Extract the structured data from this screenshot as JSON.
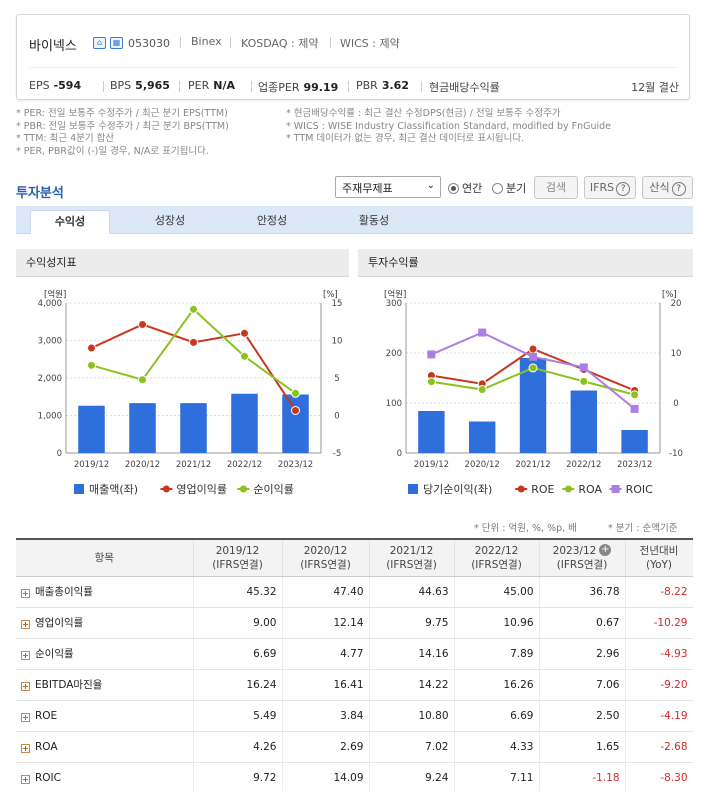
{
  "header": {
    "name": "바이넥스",
    "code": "053030",
    "english_name": "Binex",
    "market": "KOSDAQ : 제약",
    "wics": "WICS : 제약",
    "stats": [
      {
        "label": "EPS",
        "value": "-594"
      },
      {
        "label": "BPS",
        "value": "5,965"
      },
      {
        "label": "PER",
        "value": "N/A"
      },
      {
        "label": "업종PER",
        "value": "99.19"
      },
      {
        "label": "PBR",
        "value": "3.62"
      },
      {
        "label": "현금배당수익률",
        "value": ""
      }
    ],
    "settlement": "12월 결산"
  },
  "notes": {
    "left": [
      "* PER: 전일 보통주 수정주가 / 최근 분기 EPS(TTM)",
      "* PBR: 전일 보통주 수정주가 / 최근 분기 BPS(TTM)",
      "* TTM: 최근 4분기 합산",
      "* PER, PBR값이 (-)일 경우, N/A로 표기됩니다."
    ],
    "right": [
      "* 현금배당수익률 : 최근 결산 수정DPS(현금) / 전일 보통주 수정주가",
      "* WICS : WISE Industry Classification Standard, modified by FnGuide",
      "* TTM 데이터가 없는 경우, 최근 결산 데이터로 표시됩니다."
    ]
  },
  "analysis": {
    "title": "투자분석",
    "select_value": "주재무제표",
    "radio_annual": "연간",
    "radio_quarter": "분기",
    "search_button": "검색",
    "ifrs_button": "IFRS",
    "calc_button": "산식",
    "help_glyph": "?",
    "tabs": [
      "수익성",
      "성장성",
      "안정성",
      "활동성"
    ]
  },
  "panels": {
    "left_title": "수익성지표",
    "right_title": "투자수익률"
  },
  "colors": {
    "bar": "#2f6fdc",
    "red": "#c8361d",
    "green": "#8cc21e",
    "purple": "#a97fe0"
  },
  "chart_data": [
    {
      "type": "bar",
      "categories": [
        "2019/12",
        "2020/12",
        "2021/12",
        "2022/12",
        "2023/12"
      ],
      "left_unit": "[억원]",
      "right_unit": "[%]",
      "left_ticks": [
        "0",
        "1,000",
        "2,000",
        "3,000",
        "4,000"
      ],
      "right_ticks": [
        "-5",
        "0",
        "5",
        "10",
        "15"
      ],
      "ylim_left": [
        0,
        4000
      ],
      "ylim_right": [
        -5,
        15
      ],
      "series": [
        {
          "name": "매출액(좌)",
          "kind": "bar",
          "axis": "left",
          "color": "#2f6fdc",
          "values": [
            1260,
            1330,
            1330,
            1580,
            1560
          ]
        },
        {
          "name": "영업이익률",
          "kind": "line",
          "axis": "right",
          "color": "#c8361d",
          "values": [
            9.0,
            12.14,
            9.75,
            10.96,
            0.67
          ]
        },
        {
          "name": "순이익률",
          "kind": "line",
          "axis": "right",
          "color": "#8cc21e",
          "values": [
            6.69,
            4.77,
            14.16,
            7.89,
            2.96
          ]
        }
      ]
    },
    {
      "type": "bar",
      "categories": [
        "2019/12",
        "2020/12",
        "2021/12",
        "2022/12",
        "2023/12"
      ],
      "left_unit": "[억원]",
      "right_unit": "[%]",
      "left_ticks": [
        "0",
        "100",
        "200",
        "300"
      ],
      "right_ticks": [
        "-10",
        "0",
        "10",
        "20"
      ],
      "ylim_left": [
        0,
        300
      ],
      "ylim_right": [
        -10,
        20
      ],
      "series": [
        {
          "name": "당기순이익(좌)",
          "kind": "bar",
          "axis": "left",
          "color": "#2f6fdc",
          "values": [
            84,
            63,
            190,
            125,
            46
          ]
        },
        {
          "name": "ROE",
          "kind": "line",
          "axis": "right",
          "color": "#c8361d",
          "values": [
            5.49,
            3.84,
            10.8,
            6.69,
            2.5
          ]
        },
        {
          "name": "ROA",
          "kind": "line",
          "axis": "right",
          "color": "#8cc21e",
          "values": [
            4.26,
            2.69,
            7.02,
            4.33,
            1.65
          ]
        },
        {
          "name": "ROIC",
          "kind": "line",
          "axis": "right",
          "color": "#a97fe0",
          "marker": "square",
          "values": [
            9.72,
            14.09,
            9.24,
            7.11,
            -1.18
          ]
        }
      ]
    }
  ],
  "table": {
    "unit_note": "* 단위 : 억원, %, %p, 배",
    "quarter_note": "* 분기 : 순액기준",
    "headers": [
      {
        "l1": "항목",
        "l2": ""
      },
      {
        "l1": "2019/12",
        "l2": "(IFRS연결)"
      },
      {
        "l1": "2020/12",
        "l2": "(IFRS연결)"
      },
      {
        "l1": "2021/12",
        "l2": "(IFRS연결)"
      },
      {
        "l1": "2022/12",
        "l2": "(IFRS연결)"
      },
      {
        "l1": "2023/12",
        "l2": "(IFRS연결)"
      },
      {
        "l1": "전년대비",
        "l2": "(YoY)"
      }
    ],
    "plus_glyph": "+",
    "rows": [
      {
        "label": "매출총이익률",
        "values": [
          "45.32",
          "47.40",
          "44.63",
          "45.00",
          "36.78",
          "-8.22"
        ]
      },
      {
        "label": "영업이익률",
        "values": [
          "9.00",
          "12.14",
          "9.75",
          "10.96",
          "0.67",
          "-10.29"
        ]
      },
      {
        "label": "순이익률",
        "values": [
          "6.69",
          "4.77",
          "14.16",
          "7.89",
          "2.96",
          "-4.93"
        ]
      },
      {
        "label": "EBITDA마진율",
        "values": [
          "16.24",
          "16.41",
          "14.22",
          "16.26",
          "7.06",
          "-9.20"
        ]
      },
      {
        "label": "ROE",
        "values": [
          "5.49",
          "3.84",
          "10.80",
          "6.69",
          "2.50",
          "-4.19"
        ]
      },
      {
        "label": "ROA",
        "values": [
          "4.26",
          "2.69",
          "7.02",
          "4.33",
          "1.65",
          "-2.68"
        ]
      },
      {
        "label": "ROIC",
        "values": [
          "9.72",
          "14.09",
          "9.24",
          "7.11",
          "-1.18",
          "-8.30"
        ]
      }
    ]
  }
}
